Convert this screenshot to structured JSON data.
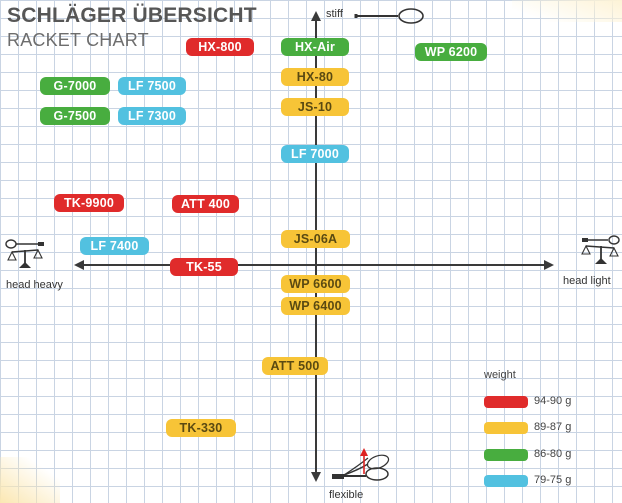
{
  "title": "SCHLÄGER ÜBERSICHT",
  "subtitle": "RACKET CHART",
  "axes": {
    "top": "stiff",
    "bottom": "flexible",
    "left": "head heavy",
    "right": "head light"
  },
  "rackets": [
    {
      "name": "HX-800",
      "color": "red"
    },
    {
      "name": "HX-Air",
      "color": "green"
    },
    {
      "name": "WP 6200",
      "color": "green"
    },
    {
      "name": "G-7000",
      "color": "green"
    },
    {
      "name": "LF 7500",
      "color": "blue"
    },
    {
      "name": "HX-80",
      "color": "yellow"
    },
    {
      "name": "JS-10",
      "color": "yellow"
    },
    {
      "name": "G-7500",
      "color": "green"
    },
    {
      "name": "LF 7300",
      "color": "blue"
    },
    {
      "name": "LF 7000",
      "color": "blue"
    },
    {
      "name": "TK-9900",
      "color": "red"
    },
    {
      "name": "ATT 400",
      "color": "red"
    },
    {
      "name": "JS-06A",
      "color": "yellow"
    },
    {
      "name": "LF 7400",
      "color": "blue"
    },
    {
      "name": "TK-55",
      "color": "red"
    },
    {
      "name": "WP 6600",
      "color": "yellow"
    },
    {
      "name": "WP 6400",
      "color": "yellow"
    },
    {
      "name": "ATT 500",
      "color": "yellow"
    },
    {
      "name": "TK-330",
      "color": "yellow"
    }
  ],
  "legend": {
    "title": "weight",
    "items": [
      {
        "label": "94-90 g",
        "color": "#e02b2b"
      },
      {
        "label": "89-87 g",
        "color": "#f7c437"
      },
      {
        "label": "86-80 g",
        "color": "#48ad3f"
      },
      {
        "label": "79-75 g",
        "color": "#52c1e0"
      }
    ]
  }
}
